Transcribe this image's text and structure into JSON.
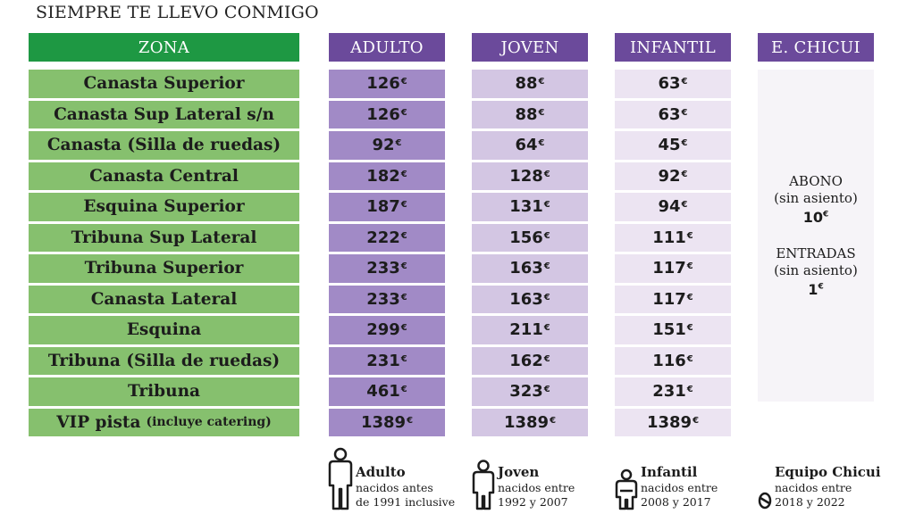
{
  "title": "SIEMPRE TE LLEVO CONMIGO",
  "currency_symbol": "€",
  "colors": {
    "zona_header": "#1e9843",
    "zona_cell": "#86c06e",
    "purple_header": "#6b4a9b",
    "adulto_cell": "#a18ac6",
    "joven_cell": "#d3c6e3",
    "infantil_cell": "#ece4f2",
    "chicui_cell": "#f6f4f8"
  },
  "headers": {
    "zona": "ZONA",
    "adulto": "ADULTO",
    "joven": "JOVEN",
    "infantil": "INFANTIL",
    "chicui": "E. CHICUI"
  },
  "rows": [
    {
      "zona": "Canasta Superior",
      "zona_note": "",
      "adulto": "126",
      "joven": "88",
      "infantil": "63"
    },
    {
      "zona": "Canasta Sup Lateral s/n",
      "zona_note": "",
      "adulto": "126",
      "joven": "88",
      "infantil": "63"
    },
    {
      "zona": "Canasta (Silla de ruedas)",
      "zona_note": "",
      "adulto": "92",
      "joven": "64",
      "infantil": "45"
    },
    {
      "zona": "Canasta Central",
      "zona_note": "",
      "adulto": "182",
      "joven": "128",
      "infantil": "92"
    },
    {
      "zona": "Esquina Superior",
      "zona_note": "",
      "adulto": "187",
      "joven": "131",
      "infantil": "94"
    },
    {
      "zona": "Tribuna Sup Lateral",
      "zona_note": "",
      "adulto": "222",
      "joven": "156",
      "infantil": "111"
    },
    {
      "zona": "Tribuna Superior",
      "zona_note": "",
      "adulto": "233",
      "joven": "163",
      "infantil": "117"
    },
    {
      "zona": "Canasta Lateral",
      "zona_note": "",
      "adulto": "233",
      "joven": "163",
      "infantil": "117"
    },
    {
      "zona": "Esquina",
      "zona_note": "",
      "adulto": "299",
      "joven": "211",
      "infantil": "151"
    },
    {
      "zona": "Tribuna (Silla de ruedas)",
      "zona_note": "",
      "adulto": "231",
      "joven": "162",
      "infantil": "116"
    },
    {
      "zona": "Tribuna",
      "zona_note": "",
      "adulto": "461",
      "joven": "323",
      "infantil": "231"
    },
    {
      "zona": "VIP pista",
      "zona_note": "(incluye catering)",
      "adulto": "1389",
      "joven": "1389",
      "infantil": "1389"
    }
  ],
  "chicui": {
    "abono_label": "ABONO",
    "abono_note": "(sin asiento)",
    "abono_price": "10",
    "entradas_label": "ENTRADAS",
    "entradas_note": "(sin asiento)",
    "entradas_price": "1"
  },
  "legend": [
    {
      "icon": "adult-person-icon",
      "name": "Adulto",
      "line1": "nacidos antes",
      "line2": "de 1991 inclusive"
    },
    {
      "icon": "young-person-icon",
      "name": "Joven",
      "line1": "nacidos entre",
      "line2": "1992 y 2007"
    },
    {
      "icon": "child-person-icon",
      "name": "Infantil",
      "line1": "nacidos entre",
      "line2": "2008 y 2017"
    },
    {
      "icon": "baby-icon",
      "name": "Equipo Chicui",
      "line1": "nacidos entre",
      "line2": "2018 y 2022"
    }
  ]
}
